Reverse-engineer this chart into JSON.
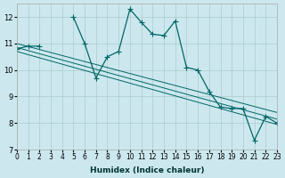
{
  "title": "",
  "xlabel": "Humidex (Indice chaleur)",
  "ylabel": "",
  "bg_color": "#cce8ee",
  "line_color": "#006666",
  "grid_color": "#aacccc",
  "xlim": [
    0,
    23
  ],
  "ylim": [
    7,
    12.5
  ],
  "yticks": [
    7,
    8,
    9,
    10,
    11,
    12
  ],
  "xticks": [
    0,
    1,
    2,
    3,
    4,
    5,
    6,
    7,
    8,
    9,
    10,
    11,
    12,
    13,
    14,
    15,
    16,
    17,
    18,
    19,
    20,
    21,
    22,
    23
  ],
  "series": [
    {
      "x": [
        0,
        1,
        2,
        3,
        4,
        5,
        6,
        7,
        8,
        9,
        10,
        11,
        12,
        13,
        14,
        15,
        16,
        17,
        18,
        19,
        20,
        21,
        22,
        23
      ],
      "y": [
        10.8,
        10.9,
        10.9,
        null,
        null,
        12.0,
        11.0,
        9.7,
        10.5,
        10.7,
        12.3,
        11.8,
        11.35,
        11.3,
        11.85,
        10.1,
        10.0,
        9.2,
        8.6,
        8.55,
        8.55,
        7.35,
        8.25,
        8.0
      ]
    },
    {
      "x": [
        0,
        23
      ],
      "y": [
        11.0,
        8.4
      ]
    },
    {
      "x": [
        0,
        23
      ],
      "y": [
        10.85,
        8.15
      ]
    },
    {
      "x": [
        0,
        23
      ],
      "y": [
        10.7,
        7.95
      ]
    }
  ]
}
